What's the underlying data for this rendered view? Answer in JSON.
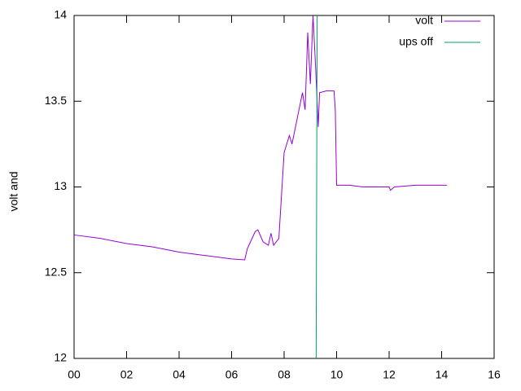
{
  "chart_data": {
    "type": "line",
    "y_label": "volt and",
    "xlim": [
      0,
      16
    ],
    "xticks": [
      {
        "value": 0,
        "label": "00"
      },
      {
        "value": 2,
        "label": "02"
      },
      {
        "value": 4,
        "label": "04"
      },
      {
        "value": 6,
        "label": "06"
      },
      {
        "value": 8,
        "label": "08"
      },
      {
        "value": 10,
        "label": "10"
      },
      {
        "value": 12,
        "label": "12"
      },
      {
        "value": 14,
        "label": "14"
      },
      {
        "value": 16,
        "label": "16"
      }
    ],
    "ylim": [
      12,
      14
    ],
    "yticks": [
      12,
      12.5,
      13,
      13.5,
      14
    ],
    "legend": "top-right",
    "series": [
      {
        "name": "volt",
        "color": "#9400d3",
        "x": [
          0,
          1,
          2,
          3,
          4,
          5,
          6,
          6.5,
          6.6,
          6.9,
          7.0,
          7.2,
          7.4,
          7.5,
          7.6,
          7.8,
          7.9,
          8.0,
          8.2,
          8.3,
          8.5,
          8.7,
          8.8,
          8.9,
          9.0,
          9.1,
          9.2,
          9.3,
          9.35,
          9.6,
          9.9,
          9.95,
          10.0,
          10.5,
          11,
          12,
          12.05,
          12.2,
          13,
          14.2
        ],
        "values": [
          12.72,
          12.7,
          12.67,
          12.65,
          12.62,
          12.6,
          12.58,
          12.575,
          12.64,
          12.74,
          12.75,
          12.68,
          12.66,
          12.73,
          12.66,
          12.7,
          12.95,
          13.2,
          13.3,
          13.25,
          13.4,
          13.55,
          13.45,
          13.9,
          13.6,
          14.0,
          13.7,
          13.35,
          13.55,
          13.56,
          13.56,
          13.45,
          13.01,
          13.01,
          13.0,
          13.0,
          12.98,
          13.0,
          13.01,
          13.01
        ]
      },
      {
        "name": "ups off",
        "color": "#009e73",
        "x": [
          9.22,
          9.24,
          9.26
        ],
        "values": [
          12,
          13,
          14
        ]
      }
    ]
  }
}
